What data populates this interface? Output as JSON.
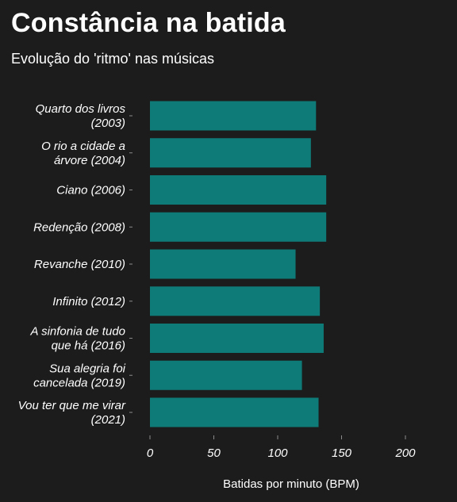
{
  "title": "Constância na batida",
  "subtitle": "Evolução do 'ritmo' nas músicas",
  "colors": {
    "background": "#1c1c1c",
    "bar": "#0e7b78",
    "text": "#ffffff",
    "tick": "#8a8a8a"
  },
  "chart_data": {
    "type": "bar",
    "orientation": "horizontal",
    "categories": [
      [
        "Quarto dos livros",
        "(2003)"
      ],
      [
        "O rio a cidade a",
        "árvore (2004)"
      ],
      [
        "Ciano (2006)"
      ],
      [
        "Redenção (2008)"
      ],
      [
        "Revanche (2010)"
      ],
      [
        "Infinito (2012)"
      ],
      [
        "A sinfonia de tudo",
        "que há (2016)"
      ],
      [
        "Sua alegria foi",
        "cancelada (2019)"
      ],
      [
        "Vou ter que me virar",
        "(2021)"
      ]
    ],
    "values": [
      130,
      126,
      138,
      138,
      114,
      133,
      136,
      119,
      132
    ],
    "xlabel": "Batidas por minuto (BPM)",
    "ylabel": "",
    "xlim": [
      0,
      200
    ],
    "xticks": [
      0,
      50,
      100,
      150,
      200
    ],
    "grid": false
  }
}
